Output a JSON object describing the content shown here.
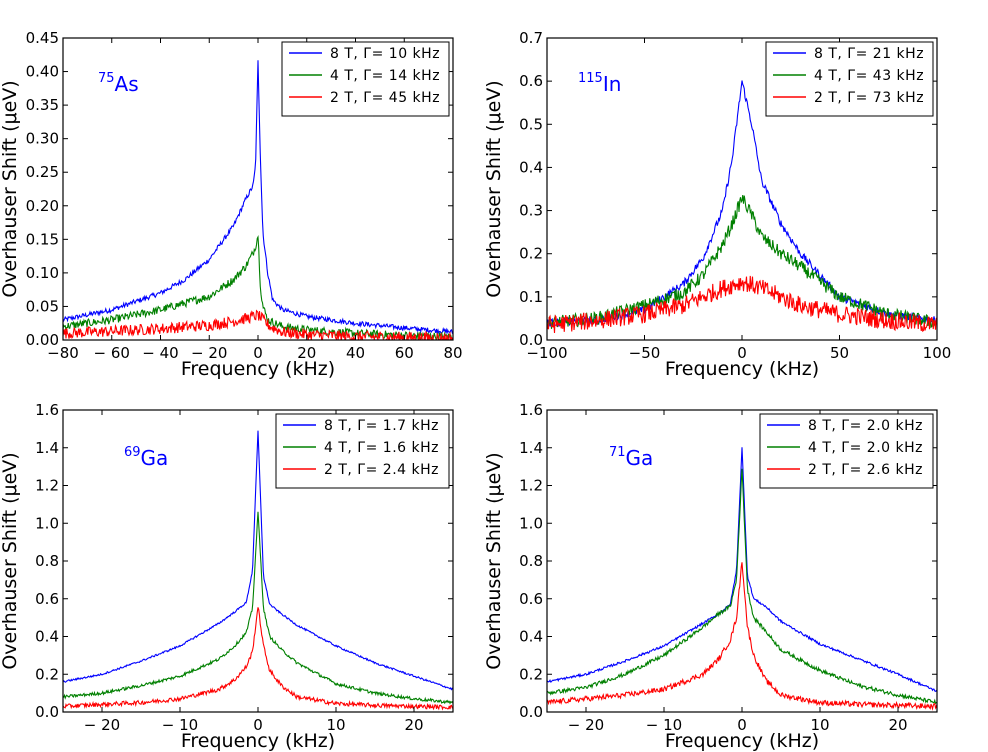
{
  "chart_data": [
    {
      "type": "line",
      "isotope_mass": "75",
      "isotope_symbol": "As",
      "xlabel": "Frequency (kHz)",
      "ylabel": "Overhauser Shift (μeV)",
      "xlim": [
        -80,
        80
      ],
      "ylim": [
        0,
        0.45
      ],
      "xticks": [
        -80,
        -60,
        -40,
        -20,
        0,
        20,
        40,
        60,
        80
      ],
      "xtick_labels": [
        "−80",
        "− 60",
        "− 40",
        "− 20",
        "0",
        "20",
        "40",
        "60",
        "80"
      ],
      "yticks": [
        0,
        0.05,
        0.1,
        0.15,
        0.2,
        0.25,
        0.3,
        0.35,
        0.4,
        0.45
      ],
      "ytick_labels": [
        "0.00",
        "0.05",
        "0.10",
        "0.15",
        "0.20",
        "0.25",
        "0.30",
        "0.35",
        "0.40",
        "0.45"
      ],
      "legend_position": "top-right",
      "series": [
        {
          "name": "8 T, Γ= 10 kHz",
          "color": "#0000ff",
          "x": [
            -80,
            -60,
            -40,
            -30,
            -20,
            -10,
            -5,
            -2,
            -1,
            0,
            1,
            2,
            4,
            6,
            10,
            20,
            40,
            60,
            80
          ],
          "y": [
            0.03,
            0.045,
            0.07,
            0.09,
            0.12,
            0.17,
            0.21,
            0.23,
            0.26,
            0.415,
            0.27,
            0.16,
            0.1,
            0.06,
            0.045,
            0.035,
            0.025,
            0.018,
            0.012
          ]
        },
        {
          "name": "4 T, Γ= 14 kHz",
          "color": "#008000",
          "x": [
            -80,
            -60,
            -40,
            -20,
            -10,
            -5,
            -2,
            -1,
            0,
            1,
            2,
            4,
            10,
            20,
            40,
            60,
            80
          ],
          "y": [
            0.02,
            0.03,
            0.045,
            0.065,
            0.09,
            0.11,
            0.13,
            0.14,
            0.157,
            0.08,
            0.05,
            0.03,
            0.02,
            0.015,
            0.01,
            0.007,
            0.005
          ]
        },
        {
          "name": "2 T, Γ= 45 kHz",
          "color": "#ff0000",
          "x": [
            -80,
            -60,
            -40,
            -20,
            -10,
            -5,
            0,
            5,
            10,
            20,
            40,
            60,
            80
          ],
          "y": [
            0.01,
            0.013,
            0.017,
            0.022,
            0.028,
            0.032,
            0.037,
            0.02,
            0.012,
            0.008,
            0.005,
            0.004,
            0.003
          ]
        }
      ],
      "noise_amplitude": 0.006
    },
    {
      "type": "line",
      "isotope_mass": "115",
      "isotope_symbol": "In",
      "xlabel": "Frequency (kHz)",
      "ylabel": "Overhauser Shift (μeV)",
      "xlim": [
        -100,
        100
      ],
      "ylim": [
        0,
        0.7
      ],
      "xticks": [
        -100,
        -50,
        0,
        50,
        100
      ],
      "xtick_labels": [
        "−100",
        "−50",
        "0",
        "50",
        "100"
      ],
      "yticks": [
        0,
        0.1,
        0.2,
        0.3,
        0.4,
        0.5,
        0.6,
        0.7
      ],
      "ytick_labels": [
        "0.0",
        "0.1",
        "0.2",
        "0.3",
        "0.4",
        "0.5",
        "0.6",
        "0.7"
      ],
      "legend_position": "top-right",
      "series": [
        {
          "name": "8 T, Γ= 21 kHz",
          "color": "#0000ff",
          "x": [
            -100,
            -75,
            -50,
            -30,
            -20,
            -10,
            -5,
            0,
            5,
            10,
            20,
            30,
            50,
            75,
            100
          ],
          "y": [
            0.04,
            0.045,
            0.07,
            0.13,
            0.19,
            0.3,
            0.42,
            0.6,
            0.5,
            0.37,
            0.27,
            0.2,
            0.1,
            0.06,
            0.045
          ]
        },
        {
          "name": "4 T, Γ= 43 kHz",
          "color": "#008000",
          "x": [
            -100,
            -75,
            -50,
            -30,
            -20,
            -10,
            -5,
            0,
            5,
            10,
            20,
            30,
            50,
            75,
            100
          ],
          "y": [
            0.04,
            0.05,
            0.08,
            0.11,
            0.15,
            0.22,
            0.27,
            0.33,
            0.29,
            0.24,
            0.2,
            0.17,
            0.1,
            0.06,
            0.04
          ]
        },
        {
          "name": "2 T, Γ= 73 kHz",
          "color": "#ff0000",
          "x": [
            -100,
            -75,
            -50,
            -30,
            -20,
            -10,
            0,
            10,
            20,
            30,
            50,
            75,
            100
          ],
          "y": [
            0.035,
            0.045,
            0.06,
            0.08,
            0.1,
            0.12,
            0.135,
            0.12,
            0.1,
            0.08,
            0.06,
            0.045,
            0.035
          ]
        }
      ],
      "noise_amplitude": 0.015
    },
    {
      "type": "line",
      "isotope_mass": "69",
      "isotope_symbol": "Ga",
      "xlabel": "Frequency (kHz)",
      "ylabel": "Overhauser Shift (μeV)",
      "xlim": [
        -25,
        25
      ],
      "ylim": [
        0,
        1.6
      ],
      "xticks": [
        -20,
        -10,
        0,
        10,
        20
      ],
      "xtick_labels": [
        "− 20",
        "− 10",
        "0",
        "10",
        "20"
      ],
      "yticks": [
        0,
        0.2,
        0.4,
        0.6,
        0.8,
        1.0,
        1.2,
        1.4,
        1.6
      ],
      "ytick_labels": [
        "0.0",
        "0.2",
        "0.4",
        "0.6",
        "0.8",
        "1.0",
        "1.2",
        "1.4",
        "1.6"
      ],
      "legend_position": "top-right",
      "series": [
        {
          "name": "8 T, Γ= 1.7 kHz",
          "color": "#0000ff",
          "x": [
            -25,
            -20,
            -15,
            -10,
            -5,
            -3,
            -1.5,
            -0.7,
            0,
            0.7,
            1.5,
            3,
            5,
            10,
            15,
            20,
            25
          ],
          "y": [
            0.16,
            0.2,
            0.27,
            0.35,
            0.47,
            0.53,
            0.58,
            0.75,
            1.49,
            0.72,
            0.57,
            0.52,
            0.46,
            0.35,
            0.26,
            0.19,
            0.12
          ]
        },
        {
          "name": "4 T, Γ= 1.6 kHz",
          "color": "#008000",
          "x": [
            -25,
            -20,
            -15,
            -10,
            -5,
            -3,
            -1.5,
            -0.7,
            0,
            0.7,
            1.5,
            3,
            5,
            10,
            15,
            20,
            25
          ],
          "y": [
            0.08,
            0.1,
            0.14,
            0.19,
            0.28,
            0.35,
            0.42,
            0.55,
            1.06,
            0.55,
            0.4,
            0.33,
            0.26,
            0.15,
            0.1,
            0.07,
            0.05
          ]
        },
        {
          "name": "2 T, Γ= 2.4 kHz",
          "color": "#ff0000",
          "x": [
            -25,
            -20,
            -15,
            -10,
            -5,
            -3,
            -1.5,
            -0.7,
            0,
            0.7,
            1.5,
            3,
            5,
            10,
            15,
            20,
            25
          ],
          "y": [
            0.03,
            0.04,
            0.05,
            0.07,
            0.12,
            0.17,
            0.24,
            0.32,
            0.56,
            0.35,
            0.22,
            0.14,
            0.08,
            0.045,
            0.035,
            0.03,
            0.025
          ]
        }
      ],
      "noise_amplitude": 0.008
    },
    {
      "type": "line",
      "isotope_mass": "71",
      "isotope_symbol": "Ga",
      "xlabel": "Frequency (kHz)",
      "ylabel": "Overhauser Shift (μeV)",
      "xlim": [
        -25,
        25
      ],
      "ylim": [
        0,
        1.6
      ],
      "xticks": [
        -20,
        -10,
        0,
        10,
        20
      ],
      "xtick_labels": [
        "− 20",
        "− 10",
        "0",
        "10",
        "20"
      ],
      "yticks": [
        0,
        0.2,
        0.4,
        0.6,
        0.8,
        1.0,
        1.2,
        1.4,
        1.6
      ],
      "ytick_labels": [
        "0.0",
        "0.2",
        "0.4",
        "0.6",
        "0.8",
        "1.0",
        "1.2",
        "1.4",
        "1.6"
      ],
      "legend_position": "top-right",
      "series": [
        {
          "name": "8 T, Γ= 2.0 kHz",
          "color": "#0000ff",
          "x": [
            -25,
            -20,
            -15,
            -10,
            -5,
            -3,
            -1.5,
            -0.7,
            0,
            0.7,
            1.5,
            3,
            5,
            10,
            15,
            20,
            25
          ],
          "y": [
            0.16,
            0.2,
            0.27,
            0.35,
            0.47,
            0.52,
            0.57,
            0.75,
            1.4,
            0.72,
            0.6,
            0.56,
            0.48,
            0.36,
            0.28,
            0.2,
            0.11
          ]
        },
        {
          "name": "4 T, Γ= 2.0 kHz",
          "color": "#008000",
          "x": [
            -25,
            -20,
            -15,
            -10,
            -5,
            -3,
            -1.5,
            -0.7,
            0,
            0.7,
            1.5,
            3,
            5,
            10,
            15,
            20,
            25
          ],
          "y": [
            0.1,
            0.13,
            0.2,
            0.3,
            0.45,
            0.52,
            0.56,
            0.7,
            1.29,
            0.65,
            0.5,
            0.43,
            0.33,
            0.22,
            0.14,
            0.09,
            0.05
          ]
        },
        {
          "name": "2 T, Γ= 2.6 kHz",
          "color": "#ff0000",
          "x": [
            -25,
            -20,
            -15,
            -10,
            -5,
            -3,
            -1.5,
            -0.7,
            0,
            0.7,
            1.5,
            3,
            5,
            10,
            15,
            20,
            25
          ],
          "y": [
            0.05,
            0.07,
            0.09,
            0.12,
            0.2,
            0.28,
            0.38,
            0.5,
            0.8,
            0.45,
            0.3,
            0.17,
            0.09,
            0.05,
            0.04,
            0.035,
            0.03
          ]
        }
      ],
      "noise_amplitude": 0.01
    }
  ]
}
